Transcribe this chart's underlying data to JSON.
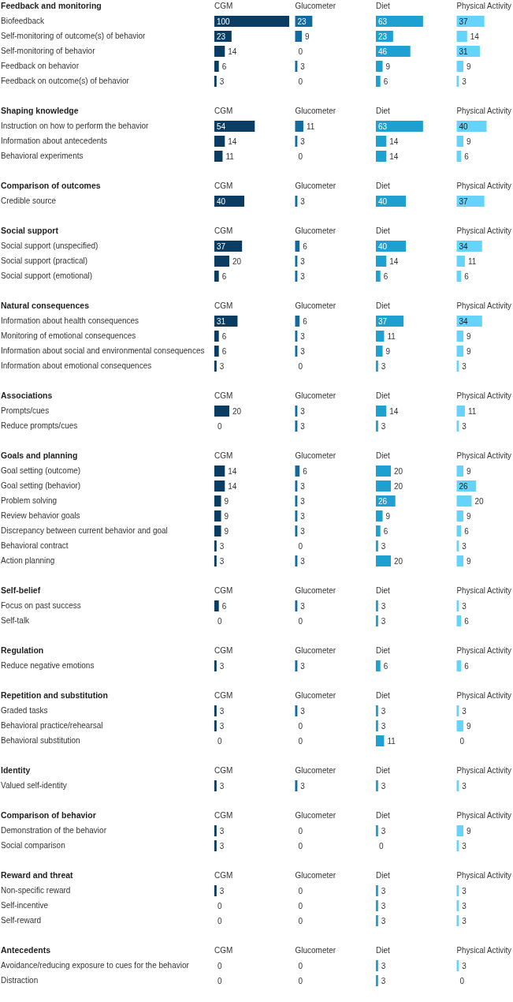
{
  "chart_data": [
    {
      "type": "bar",
      "orientation": "horizontal",
      "data_labels": true,
      "categories": [
        "Feedback and monitoring",
        "Biofeedback",
        "Self-monitoring of outcome(s) of behavior",
        "Self-monitoring of behavior",
        "Feedback on behavior",
        "Feedback on outcome(s) of behavior",
        null,
        "Shaping knowledge",
        "Instruction on how to perform the behavior",
        "Information about antecedents",
        "Behavioral experiments",
        null,
        "Comparison of outcomes",
        "Credible source",
        null,
        "Social support",
        "Social support (unspecified)",
        "Social support (practical)",
        "Social support (emotional)",
        null,
        "Natural consequences",
        "Information about health consequences",
        "Monitoring of emotional consequences",
        "Information about social and environmental consequences",
        "Information about emotional consequences",
        null,
        "Associations",
        "Prompts/cues",
        "Reduce prompts/cues",
        null,
        "Goals and planning",
        "Goal setting (outcome)",
        "Goal setting (behavior)",
        "Problem solving",
        "Review behavior goals",
        "Discrepancy between current behavior and goal",
        "Behavioral contract",
        "Action planning",
        null,
        "Self-belief",
        "Focus on past success",
        "Self-talk",
        null,
        "Regulation",
        "Reduce negative emotions",
        null,
        "Repetition and substitution",
        "Graded tasks",
        "Behavioral practice/rehearsal",
        "Behavioral substitution",
        null,
        "Identity",
        "Valued self-identity",
        null,
        "Comparison of behavior",
        "Demonstration of the behavior",
        "Social comparison",
        null,
        "Reward and threat",
        "Non-specific reward",
        "Self-incentive",
        "Self-reward",
        null,
        "Antecedents",
        "Avoidance/reducing exposure to cues for the behavior",
        "Distraction"
      ],
      "series": [
        {
          "name": "CGM",
          "color": "#0b3d63",
          "values": [
            null,
            100,
            23,
            14,
            6,
            3,
            null,
            null,
            54,
            14,
            11,
            null,
            null,
            40,
            null,
            null,
            37,
            20,
            6,
            null,
            null,
            31,
            6,
            6,
            3,
            null,
            null,
            20,
            0,
            null,
            null,
            14,
            14,
            9,
            9,
            9,
            3,
            3,
            null,
            null,
            6,
            0,
            null,
            null,
            3,
            null,
            null,
            3,
            3,
            0,
            null,
            null,
            3,
            null,
            null,
            3,
            3,
            null,
            null,
            3,
            0,
            0,
            null,
            null,
            0,
            0
          ]
        }
      ]
    },
    {
      "type": "bar",
      "orientation": "horizontal",
      "data_labels": true,
      "categories": [
        null,
        null,
        null,
        null,
        null,
        null,
        null,
        null,
        null,
        null,
        null,
        null,
        null,
        null,
        null,
        null,
        null,
        null,
        null,
        null,
        null,
        null,
        null,
        null,
        null,
        null,
        null,
        null,
        null,
        null,
        null,
        null,
        null,
        null,
        null,
        null,
        null,
        null,
        null,
        null,
        null,
        null,
        null,
        null,
        null,
        null,
        null,
        null,
        null,
        null,
        null,
        null,
        null,
        null,
        null,
        null,
        null,
        null,
        null,
        null,
        null,
        null,
        null,
        null,
        null,
        null
      ],
      "series": [
        {
          "name": "Glucometer",
          "color": "#136a9f",
          "values": [
            null,
            23,
            9,
            0,
            3,
            0,
            null,
            null,
            11,
            3,
            0,
            null,
            null,
            3,
            null,
            null,
            6,
            3,
            3,
            null,
            null,
            6,
            3,
            3,
            0,
            null,
            null,
            3,
            3,
            null,
            null,
            6,
            3,
            3,
            3,
            3,
            0,
            3,
            null,
            null,
            3,
            0,
            null,
            null,
            3,
            null,
            null,
            3,
            0,
            0,
            null,
            null,
            3,
            null,
            null,
            0,
            0,
            null,
            null,
            0,
            0,
            0,
            null,
            null,
            0,
            0
          ]
        }
      ]
    },
    {
      "type": "bar",
      "orientation": "horizontal",
      "data_labels": true,
      "categories": [
        null,
        null,
        null,
        null,
        null,
        null,
        null,
        null,
        null,
        null,
        null,
        null,
        null,
        null,
        null,
        null,
        null,
        null,
        null,
        null,
        null,
        null,
        null,
        null,
        null,
        null,
        null,
        null,
        null,
        null,
        null,
        null,
        null,
        null,
        null,
        null,
        null,
        null,
        null,
        null,
        null,
        null,
        null,
        null,
        null,
        null,
        null,
        null,
        null,
        null,
        null,
        null,
        null,
        null,
        null,
        null,
        null,
        null,
        null,
        null,
        null,
        null,
        null,
        null,
        null,
        null
      ],
      "series": [
        {
          "name": "Diet",
          "color": "#1ea0d0",
          "values": [
            null,
            63,
            23,
            46,
            9,
            6,
            null,
            null,
            63,
            14,
            14,
            null,
            null,
            40,
            null,
            null,
            40,
            14,
            6,
            null,
            null,
            37,
            11,
            9,
            3,
            null,
            null,
            14,
            3,
            null,
            null,
            20,
            20,
            26,
            9,
            6,
            3,
            20,
            null,
            null,
            3,
            3,
            null,
            null,
            6,
            null,
            null,
            3,
            3,
            11,
            null,
            null,
            3,
            null,
            null,
            3,
            0,
            null,
            null,
            3,
            3,
            3,
            null,
            null,
            3,
            3
          ]
        }
      ]
    },
    {
      "type": "bar",
      "orientation": "horizontal",
      "data_labels": true,
      "categories": [
        null,
        null,
        null,
        null,
        null,
        null,
        null,
        null,
        null,
        null,
        null,
        null,
        null,
        null,
        null,
        null,
        null,
        null,
        null,
        null,
        null,
        null,
        null,
        null,
        null,
        null,
        null,
        null,
        null,
        null,
        null,
        null,
        null,
        null,
        null,
        null,
        null,
        null,
        null,
        null,
        null,
        null,
        null,
        null,
        null,
        null,
        null,
        null,
        null,
        null,
        null,
        null,
        null,
        null,
        null,
        null,
        null,
        null,
        null,
        null,
        null,
        null,
        null,
        null,
        null,
        null
      ],
      "series": [
        {
          "name": "Physical Activity",
          "color": "#66d4fa",
          "values": [
            null,
            37,
            14,
            31,
            9,
            3,
            null,
            null,
            40,
            9,
            6,
            null,
            null,
            37,
            null,
            null,
            34,
            11,
            6,
            null,
            null,
            34,
            9,
            9,
            3,
            null,
            null,
            11,
            3,
            null,
            null,
            9,
            26,
            20,
            9,
            6,
            3,
            9,
            null,
            null,
            3,
            6,
            null,
            null,
            6,
            null,
            null,
            3,
            9,
            0,
            null,
            null,
            3,
            null,
            null,
            9,
            3,
            null,
            null,
            3,
            3,
            3,
            null,
            null,
            3,
            0
          ]
        }
      ]
    }
  ]
}
